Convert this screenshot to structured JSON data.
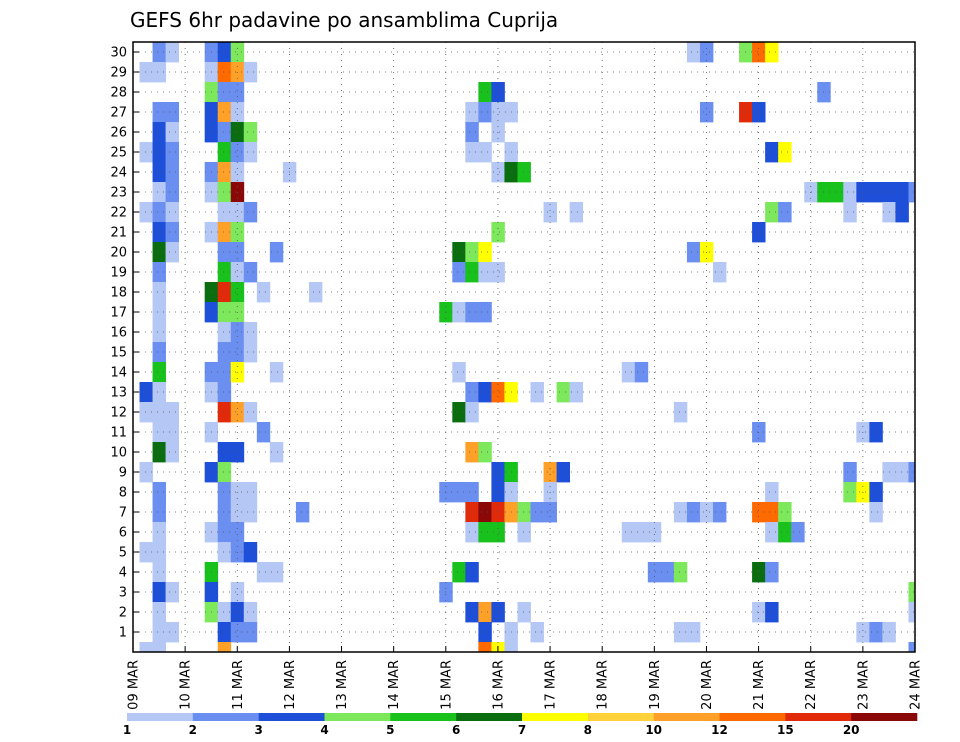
{
  "chart_data": {
    "type": "heatmap",
    "title": "GEFS 6hr padavine po ansamblima Cuprija",
    "xlabel": "",
    "ylabel": "",
    "x_ticks": [
      "09 MAR",
      "10 MAR",
      "11 MAR",
      "12 MAR",
      "13 MAR",
      "14 MAR",
      "15 MAR",
      "16 MAR",
      "17 MAR",
      "18 MAR",
      "19 MAR",
      "20 MAR",
      "21 MAR",
      "22 MAR",
      "23 MAR",
      "24 MAR"
    ],
    "x_range_days": [
      0,
      15
    ],
    "y_ticks": [
      "1",
      "2",
      "3",
      "4",
      "5",
      "6",
      "7",
      "8",
      "9",
      "10",
      "11",
      "12",
      "13",
      "14",
      "15",
      "16",
      "17",
      "18",
      "19",
      "20",
      "21",
      "22",
      "23",
      "24",
      "25",
      "26",
      "27",
      "28",
      "29",
      "30"
    ],
    "y_range": [
      0,
      30
    ],
    "grid": true,
    "colorbar": {
      "placement": "bottom",
      "levels": [
        1,
        2,
        3,
        4,
        5,
        6,
        7,
        8,
        10,
        12,
        15,
        20
      ],
      "labels": [
        "1",
        "2",
        "3",
        "4",
        "5",
        "6",
        "7",
        "8",
        "10",
        "12",
        "15",
        "20"
      ],
      "colors": [
        "#b4c7f5",
        "#6a8ff0",
        "#1e4fd8",
        "#7ee85c",
        "#19c11c",
        "#0a6e10",
        "#ffff00",
        "#ffd23c",
        "#ffa028",
        "#ff6a00",
        "#e02a0a",
        "#8a0808"
      ]
    },
    "cells": [
      [
        30,
        0.5,
        1
      ],
      [
        30,
        0.75,
        0
      ],
      [
        30,
        1.5,
        1
      ],
      [
        30,
        1.75,
        2
      ],
      [
        30,
        2,
        3
      ],
      [
        30,
        10.75,
        0
      ],
      [
        30,
        11,
        1
      ],
      [
        30,
        11.75,
        3
      ],
      [
        30,
        12,
        9
      ],
      [
        30,
        12.25,
        6
      ],
      [
        29,
        0.25,
        0
      ],
      [
        29,
        0.5,
        0
      ],
      [
        29,
        1.5,
        0
      ],
      [
        29,
        1.75,
        9
      ],
      [
        29,
        2,
        8
      ],
      [
        29,
        2.25,
        0
      ],
      [
        28,
        1.5,
        3
      ],
      [
        28,
        1.75,
        1
      ],
      [
        28,
        2,
        1
      ],
      [
        28,
        6.75,
        4
      ],
      [
        28,
        7,
        2
      ],
      [
        28,
        13.25,
        1
      ],
      [
        27,
        0.5,
        1
      ],
      [
        27,
        0.75,
        1
      ],
      [
        27,
        1.5,
        2
      ],
      [
        27,
        1.75,
        8
      ],
      [
        27,
        2,
        0
      ],
      [
        27,
        6.5,
        0
      ],
      [
        27,
        6.75,
        1
      ],
      [
        27,
        7,
        0
      ],
      [
        27,
        7.25,
        0
      ],
      [
        27,
        11,
        1
      ],
      [
        27,
        11.75,
        10
      ],
      [
        27,
        12,
        2
      ],
      [
        26,
        0.5,
        2
      ],
      [
        26,
        0.75,
        0
      ],
      [
        26,
        1.5,
        2
      ],
      [
        26,
        1.75,
        1
      ],
      [
        26,
        2,
        5
      ],
      [
        26,
        2.25,
        3
      ],
      [
        26,
        6.5,
        1
      ],
      [
        26,
        7,
        0
      ],
      [
        25,
        0.25,
        0
      ],
      [
        25,
        0.5,
        2
      ],
      [
        25,
        0.75,
        1
      ],
      [
        25,
        1.75,
        4
      ],
      [
        25,
        2,
        1
      ],
      [
        25,
        2.25,
        0
      ],
      [
        25,
        6.5,
        0
      ],
      [
        25,
        6.75,
        0
      ],
      [
        25,
        7.25,
        0
      ],
      [
        25,
        12.25,
        2
      ],
      [
        25,
        12.5,
        6
      ],
      [
        24,
        0.5,
        2
      ],
      [
        24,
        0.75,
        1
      ],
      [
        24,
        1.5,
        1
      ],
      [
        24,
        1.75,
        8
      ],
      [
        24,
        2,
        0
      ],
      [
        24,
        3,
        0
      ],
      [
        24,
        7,
        0
      ],
      [
        24,
        7.25,
        5
      ],
      [
        24,
        7.5,
        4
      ],
      [
        23,
        0.5,
        0
      ],
      [
        23,
        0.75,
        1
      ],
      [
        23,
        1.5,
        0
      ],
      [
        23,
        1.75,
        3
      ],
      [
        23,
        2,
        11
      ],
      [
        23,
        13,
        0
      ],
      [
        23,
        13.25,
        4
      ],
      [
        23,
        13.5,
        4
      ],
      [
        23,
        13.75,
        0
      ],
      [
        23,
        14,
        2
      ],
      [
        23,
        14.25,
        2
      ],
      [
        23,
        14.5,
        2
      ],
      [
        23,
        14.75,
        2
      ],
      [
        23,
        15,
        1
      ],
      [
        22,
        0.25,
        0
      ],
      [
        22,
        0.5,
        1
      ],
      [
        22,
        0.75,
        0
      ],
      [
        22,
        1.75,
        0
      ],
      [
        22,
        2,
        0
      ],
      [
        22,
        2.25,
        1
      ],
      [
        22,
        8,
        0
      ],
      [
        22,
        8.5,
        0
      ],
      [
        22,
        12.25,
        3
      ],
      [
        22,
        12.5,
        1
      ],
      [
        22,
        13.75,
        0
      ],
      [
        22,
        14.5,
        0
      ],
      [
        22,
        14.75,
        2
      ],
      [
        21,
        0.5,
        2
      ],
      [
        21,
        0.75,
        1
      ],
      [
        21,
        1.5,
        0
      ],
      [
        21,
        1.75,
        8
      ],
      [
        21,
        2,
        3
      ],
      [
        21,
        7,
        3
      ],
      [
        21,
        12,
        2
      ],
      [
        20,
        0.5,
        5
      ],
      [
        20,
        0.75,
        0
      ],
      [
        20,
        1.75,
        1
      ],
      [
        20,
        2,
        1
      ],
      [
        20,
        2.75,
        1
      ],
      [
        20,
        6.25,
        5
      ],
      [
        20,
        6.5,
        3
      ],
      [
        20,
        6.75,
        6
      ],
      [
        20,
        10.75,
        1
      ],
      [
        20,
        11,
        6
      ],
      [
        19,
        0.5,
        1
      ],
      [
        19,
        1.75,
        4
      ],
      [
        19,
        2,
        0
      ],
      [
        19,
        2.25,
        1
      ],
      [
        19,
        6.25,
        1
      ],
      [
        19,
        6.5,
        4
      ],
      [
        19,
        6.75,
        0
      ],
      [
        19,
        7,
        0
      ],
      [
        19,
        11.25,
        0
      ],
      [
        18,
        0.5,
        0
      ],
      [
        18,
        1.5,
        5
      ],
      [
        18,
        1.75,
        10
      ],
      [
        18,
        2,
        4
      ],
      [
        18,
        2.5,
        0
      ],
      [
        18,
        3.5,
        0
      ],
      [
        17,
        0.5,
        0
      ],
      [
        17,
        1.5,
        2
      ],
      [
        17,
        1.75,
        3
      ],
      [
        17,
        2,
        3
      ],
      [
        17,
        6,
        4
      ],
      [
        17,
        6.25,
        0
      ],
      [
        17,
        6.5,
        1
      ],
      [
        17,
        6.75,
        1
      ],
      [
        16,
        0.5,
        0
      ],
      [
        16,
        1.75,
        0
      ],
      [
        16,
        2,
        1
      ],
      [
        16,
        2.25,
        0
      ],
      [
        15,
        0.5,
        1
      ],
      [
        15,
        1.75,
        1
      ],
      [
        15,
        2,
        1
      ],
      [
        15,
        2.25,
        0
      ],
      [
        14,
        0.5,
        4
      ],
      [
        14,
        1.5,
        1
      ],
      [
        14,
        1.75,
        1
      ],
      [
        14,
        2,
        6
      ],
      [
        14,
        2.75,
        0
      ],
      [
        14,
        6.25,
        0
      ],
      [
        14,
        9.5,
        0
      ],
      [
        14,
        9.75,
        1
      ],
      [
        13,
        0.25,
        2
      ],
      [
        13,
        0.5,
        0
      ],
      [
        13,
        1.5,
        0
      ],
      [
        13,
        1.75,
        1
      ],
      [
        13,
        6.5,
        1
      ],
      [
        13,
        6.75,
        2
      ],
      [
        13,
        7,
        9
      ],
      [
        13,
        7.25,
        6
      ],
      [
        13,
        7.75,
        0
      ],
      [
        13,
        8.25,
        3
      ],
      [
        13,
        8.5,
        0
      ],
      [
        12,
        0.25,
        0
      ],
      [
        12,
        0.5,
        0
      ],
      [
        12,
        0.75,
        0
      ],
      [
        12,
        1.75,
        10
      ],
      [
        12,
        2,
        8
      ],
      [
        12,
        2.25,
        0
      ],
      [
        12,
        6.25,
        5
      ],
      [
        12,
        6.5,
        0
      ],
      [
        12,
        10.5,
        0
      ],
      [
        11,
        0.5,
        0
      ],
      [
        11,
        0.75,
        0
      ],
      [
        11,
        1.5,
        0
      ],
      [
        11,
        2.5,
        1
      ],
      [
        11,
        12,
        1
      ],
      [
        11,
        14,
        0
      ],
      [
        11,
        14.25,
        2
      ],
      [
        10,
        0.5,
        5
      ],
      [
        10,
        0.75,
        0
      ],
      [
        10,
        1.75,
        2
      ],
      [
        10,
        2,
        2
      ],
      [
        10,
        2.75,
        0
      ],
      [
        10,
        6.5,
        8
      ],
      [
        10,
        6.75,
        3
      ],
      [
        9,
        0.25,
        0
      ],
      [
        9,
        1.5,
        2
      ],
      [
        9,
        1.75,
        3
      ],
      [
        9,
        7,
        2
      ],
      [
        9,
        7.25,
        4
      ],
      [
        9,
        8,
        8
      ],
      [
        9,
        8.25,
        2
      ],
      [
        9,
        13.75,
        1
      ],
      [
        9,
        14.5,
        0
      ],
      [
        9,
        14.75,
        0
      ],
      [
        9,
        15,
        1
      ],
      [
        8,
        0.5,
        1
      ],
      [
        8,
        1.75,
        1
      ],
      [
        8,
        2,
        0
      ],
      [
        8,
        2.25,
        0
      ],
      [
        8,
        6,
        1
      ],
      [
        8,
        6.25,
        1
      ],
      [
        8,
        6.5,
        1
      ],
      [
        8,
        7,
        2
      ],
      [
        8,
        7.25,
        0
      ],
      [
        8,
        8,
        0
      ],
      [
        8,
        12.25,
        0
      ],
      [
        8,
        13.75,
        3
      ],
      [
        8,
        14,
        6
      ],
      [
        8,
        14.25,
        2
      ],
      [
        7,
        0.5,
        1
      ],
      [
        7,
        1.75,
        1
      ],
      [
        7,
        2,
        0
      ],
      [
        7,
        2.25,
        0
      ],
      [
        7,
        3.25,
        1
      ],
      [
        7,
        6.5,
        10
      ],
      [
        7,
        6.75,
        11
      ],
      [
        7,
        7,
        10
      ],
      [
        7,
        7.25,
        8
      ],
      [
        7,
        7.5,
        3
      ],
      [
        7,
        7.75,
        1
      ],
      [
        7,
        8,
        1
      ],
      [
        7,
        10.5,
        0
      ],
      [
        7,
        10.75,
        1
      ],
      [
        7,
        11,
        0
      ],
      [
        7,
        11.25,
        1
      ],
      [
        7,
        12,
        9
      ],
      [
        7,
        12.25,
        9
      ],
      [
        7,
        12.5,
        3
      ],
      [
        7,
        14.25,
        0
      ],
      [
        6,
        0.5,
        0
      ],
      [
        6,
        1.5,
        0
      ],
      [
        6,
        1.75,
        1
      ],
      [
        6,
        2,
        1
      ],
      [
        6,
        6.5,
        0
      ],
      [
        6,
        6.75,
        4
      ],
      [
        6,
        7,
        4
      ],
      [
        6,
        7.5,
        0
      ],
      [
        6,
        9.5,
        0
      ],
      [
        6,
        9.75,
        0
      ],
      [
        6,
        10,
        0
      ],
      [
        6,
        12.25,
        0
      ],
      [
        6,
        12.5,
        4
      ],
      [
        6,
        12.75,
        1
      ],
      [
        5,
        0.25,
        0
      ],
      [
        5,
        0.5,
        0
      ],
      [
        5,
        1.75,
        0
      ],
      [
        5,
        2,
        1
      ],
      [
        5,
        2.25,
        2
      ],
      [
        4,
        0.5,
        0
      ],
      [
        4,
        1.5,
        4
      ],
      [
        4,
        2.5,
        0
      ],
      [
        4,
        2.75,
        0
      ],
      [
        4,
        6.25,
        4
      ],
      [
        4,
        6.5,
        2
      ],
      [
        4,
        10,
        1
      ],
      [
        4,
        10.25,
        1
      ],
      [
        4,
        10.5,
        3
      ],
      [
        4,
        12,
        5
      ],
      [
        4,
        12.25,
        1
      ],
      [
        3,
        0.5,
        2
      ],
      [
        3,
        0.75,
        0
      ],
      [
        3,
        1.5,
        2
      ],
      [
        3,
        2,
        0
      ],
      [
        3,
        6,
        1
      ],
      [
        3,
        15,
        3
      ],
      [
        2,
        0.5,
        0
      ],
      [
        2,
        1.5,
        3
      ],
      [
        2,
        1.75,
        0
      ],
      [
        2,
        2,
        2
      ],
      [
        2,
        2.25,
        0
      ],
      [
        2,
        6.5,
        2
      ],
      [
        2,
        6.75,
        8
      ],
      [
        2,
        7,
        2
      ],
      [
        2,
        7.5,
        0
      ],
      [
        2,
        12,
        0
      ],
      [
        2,
        12.25,
        2
      ],
      [
        2,
        15,
        0
      ],
      [
        1,
        0.5,
        0
      ],
      [
        1,
        0.75,
        0
      ],
      [
        1,
        1.75,
        2
      ],
      [
        1,
        2,
        1
      ],
      [
        1,
        2.25,
        1
      ],
      [
        1,
        6.75,
        2
      ],
      [
        1,
        7.25,
        0
      ],
      [
        1,
        7.75,
        0
      ],
      [
        1,
        10.5,
        0
      ],
      [
        1,
        10.75,
        0
      ],
      [
        1,
        14,
        0
      ],
      [
        1,
        14.25,
        1
      ],
      [
        1,
        14.5,
        0
      ],
      [
        0,
        0.25,
        0
      ],
      [
        0,
        0.5,
        0
      ],
      [
        0,
        1.75,
        8
      ],
      [
        0,
        6.75,
        9
      ],
      [
        0,
        7,
        6
      ],
      [
        0,
        7.25,
        0
      ],
      [
        0,
        15,
        1
      ]
    ]
  }
}
